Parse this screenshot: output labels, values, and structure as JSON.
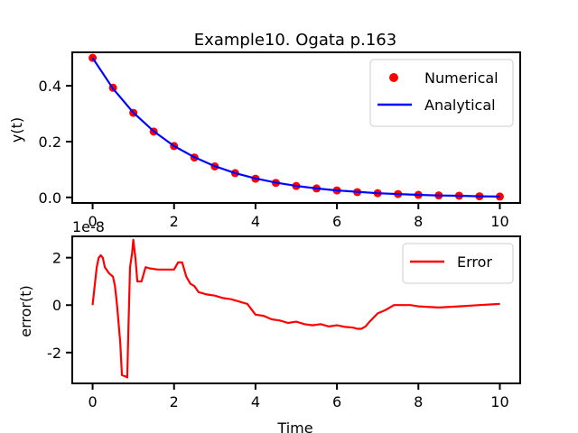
{
  "chart_data": [
    {
      "type": "line",
      "title": "Example10. Ogata p.163",
      "xlabel": "",
      "ylabel": "y(t)",
      "xlim": [
        -0.5,
        10.5
      ],
      "ylim": [
        -0.02,
        0.52
      ],
      "xticks": [
        0,
        2,
        4,
        6,
        8,
        10
      ],
      "yticks": [
        0.0,
        0.2,
        0.4
      ],
      "ytick_labels": [
        "0.0",
        "0.2",
        "0.4"
      ],
      "offset_text": "1e-8",
      "legend_position": "top-right",
      "grid": false,
      "series": [
        {
          "name": "Numerical",
          "style": "scatter",
          "color": "#ff0000",
          "x": [
            0,
            0.5,
            1.0,
            1.5,
            2.0,
            2.5,
            3.0,
            3.5,
            4.0,
            4.5,
            5.0,
            5.5,
            6.0,
            6.5,
            7.0,
            7.5,
            8.0,
            8.5,
            9.0,
            9.5,
            10.0
          ],
          "y": [
            0.5,
            0.393,
            0.303,
            0.236,
            0.184,
            0.143,
            0.111,
            0.087,
            0.067,
            0.052,
            0.041,
            0.032,
            0.025,
            0.019,
            0.015,
            0.012,
            0.009,
            0.007,
            0.006,
            0.004,
            0.003
          ]
        },
        {
          "name": "Analytical",
          "style": "line",
          "color": "#0000ff",
          "x": [
            0,
            0.5,
            1.0,
            1.5,
            2.0,
            2.5,
            3.0,
            3.5,
            4.0,
            4.5,
            5.0,
            5.5,
            6.0,
            6.5,
            7.0,
            7.5,
            8.0,
            8.5,
            9.0,
            9.5,
            10.0
          ],
          "y": [
            0.5,
            0.39,
            0.304,
            0.237,
            0.184,
            0.144,
            0.112,
            0.087,
            0.068,
            0.053,
            0.041,
            0.032,
            0.025,
            0.02,
            0.015,
            0.012,
            0.009,
            0.007,
            0.006,
            0.004,
            0.003
          ]
        }
      ]
    },
    {
      "type": "line",
      "title": "",
      "xlabel": "Time",
      "ylabel": "error(t)",
      "xlim": [
        -0.5,
        10.5
      ],
      "ylim": [
        -3.3,
        2.9
      ],
      "xticks": [
        0,
        2,
        4,
        6,
        8,
        10
      ],
      "yticks": [
        -2,
        0,
        2
      ],
      "ytick_labels": [
        "-2",
        "0",
        "2"
      ],
      "legend_position": "top-right",
      "grid": false,
      "series": [
        {
          "name": "Error",
          "style": "line",
          "color": "#ff0000",
          "x": [
            0,
            0.1,
            0.15,
            0.2,
            0.25,
            0.3,
            0.4,
            0.5,
            0.55,
            0.6,
            0.68,
            0.72,
            0.8,
            0.85,
            0.88,
            0.92,
            0.97,
            1.0,
            1.05,
            1.1,
            1.2,
            1.3,
            1.4,
            1.6,
            1.8,
            2.0,
            2.1,
            2.2,
            2.3,
            2.4,
            2.5,
            2.6,
            2.7,
            2.8,
            3.0,
            3.2,
            3.4,
            3.6,
            3.8,
            4.0,
            4.2,
            4.4,
            4.6,
            4.8,
            5.0,
            5.2,
            5.4,
            5.6,
            5.8,
            6.0,
            6.2,
            6.4,
            6.5,
            6.6,
            6.7,
            6.8,
            7.0,
            7.2,
            7.4,
            7.6,
            7.8,
            8.0,
            8.5,
            9.0,
            9.5,
            10.0
          ],
          "y": [
            0,
            1.6,
            2.0,
            2.1,
            2.0,
            1.6,
            1.35,
            1.2,
            0.8,
            0.0,
            -1.6,
            -2.95,
            -3.0,
            -3.05,
            -1.0,
            1.6,
            2.2,
            2.75,
            2.0,
            1.0,
            1.0,
            1.6,
            1.55,
            1.5,
            1.5,
            1.5,
            1.8,
            1.8,
            1.2,
            0.9,
            0.8,
            0.55,
            0.5,
            0.45,
            0.4,
            0.3,
            0.25,
            0.15,
            0.05,
            -0.4,
            -0.45,
            -0.6,
            -0.65,
            -0.75,
            -0.7,
            -0.8,
            -0.85,
            -0.8,
            -0.9,
            -0.85,
            -0.92,
            -0.95,
            -1.0,
            -1.0,
            -0.9,
            -0.7,
            -0.35,
            -0.2,
            0.0,
            0.0,
            0.0,
            -0.05,
            -0.1,
            -0.05,
            0.0,
            0.05
          ]
        }
      ]
    }
  ]
}
